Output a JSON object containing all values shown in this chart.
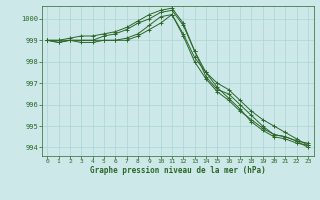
{
  "title": "Graphe pression niveau de la mer (hPa)",
  "bg_color": "#cce8e8",
  "grid_color": "#aad4d4",
  "line_color": "#2d6629",
  "ylim": [
    993.6,
    1000.6
  ],
  "xlim": [
    -0.5,
    23.5
  ],
  "yticks": [
    994,
    995,
    996,
    997,
    998,
    999,
    1000
  ],
  "xticks": [
    0,
    1,
    2,
    3,
    4,
    5,
    6,
    7,
    8,
    9,
    10,
    11,
    12,
    13,
    14,
    15,
    16,
    17,
    18,
    19,
    20,
    21,
    22,
    23
  ],
  "series": [
    [
      999.0,
      999.0,
      999.1,
      999.2,
      999.2,
      999.3,
      999.4,
      999.6,
      999.9,
      1000.2,
      1000.4,
      1000.5,
      999.8,
      998.5,
      997.5,
      997.0,
      996.7,
      996.2,
      995.7,
      995.3,
      995.0,
      994.7,
      994.4,
      994.1
    ],
    [
      999.0,
      999.0,
      999.0,
      999.0,
      999.0,
      999.2,
      999.3,
      999.5,
      999.8,
      1000.0,
      1000.3,
      1000.4,
      999.7,
      998.5,
      997.3,
      996.7,
      996.5,
      996.0,
      995.5,
      995.0,
      994.6,
      994.5,
      994.3,
      994.0
    ],
    [
      999.0,
      998.9,
      999.0,
      999.0,
      999.0,
      999.0,
      999.0,
      999.1,
      999.3,
      999.7,
      1000.1,
      1000.2,
      999.2,
      998.0,
      997.2,
      996.6,
      996.2,
      995.7,
      995.3,
      994.9,
      994.6,
      994.5,
      994.3,
      994.2
    ],
    [
      999.0,
      998.9,
      999.0,
      998.9,
      998.9,
      999.0,
      999.0,
      999.0,
      999.2,
      999.5,
      999.8,
      1000.2,
      999.3,
      998.2,
      997.5,
      996.8,
      996.3,
      995.8,
      995.2,
      994.8,
      994.5,
      994.4,
      994.2,
      994.1
    ]
  ]
}
